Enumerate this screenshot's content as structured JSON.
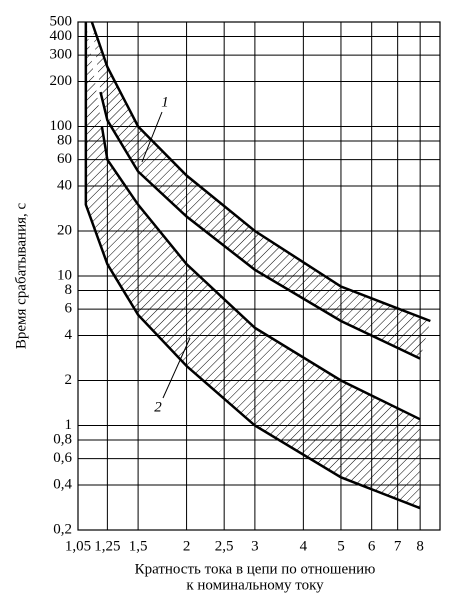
{
  "chart_data": {
    "type": "band",
    "ylabel": "Время срабатывания, с",
    "xlabel": [
      "Кратность тока в цепи по отношению",
      "к номинальному току"
    ],
    "log_x": true,
    "log_y": true,
    "grid": true,
    "xlim": [
      1.05,
      9
    ],
    "ylim": [
      0.2,
      500
    ],
    "xticks": [
      {
        "value": 1.05,
        "label": "1,05"
      },
      {
        "value": 1.25,
        "label": "1,25"
      },
      {
        "value": 1.5,
        "label": "1,5"
      },
      2,
      {
        "value": 2.5,
        "label": "2,5"
      },
      3,
      4,
      5,
      6,
      7,
      8
    ],
    "yticks": [
      {
        "value": 0.2,
        "label": "0,2"
      },
      {
        "value": 0.4,
        "label": "0,4"
      },
      {
        "value": 0.6,
        "label": "0,6"
      },
      {
        "value": 0.8,
        "label": "0,8"
      },
      1,
      2,
      4,
      6,
      8,
      10,
      20,
      40,
      60,
      80,
      100,
      200,
      300,
      400,
      500
    ],
    "series": [
      {
        "name": "1",
        "color": "#000000",
        "x_upper": [
          1.14,
          1.25,
          1.5,
          2,
          3,
          5,
          8.5
        ],
        "upper": [
          500,
          250,
          100,
          47,
          20,
          8.5,
          5
        ],
        "x_lower": [
          1.2,
          1.25,
          1.5,
          2,
          3,
          5,
          8
        ],
        "lower": [
          170,
          110,
          50,
          25,
          11,
          5,
          2.8
        ]
      },
      {
        "name": "2",
        "color": "#000000",
        "x_upper": [
          1.21,
          1.25,
          1.5,
          2,
          3,
          5,
          8
        ],
        "upper": [
          100,
          60,
          30,
          12,
          4.5,
          2,
          1.1
        ],
        "x_lower": [
          1.1,
          1.1,
          1.25,
          1.5,
          2,
          3,
          5,
          8
        ],
        "lower": [
          500,
          30,
          12,
          5.5,
          2.5,
          1,
          0.45,
          0.28
        ]
      }
    ]
  }
}
